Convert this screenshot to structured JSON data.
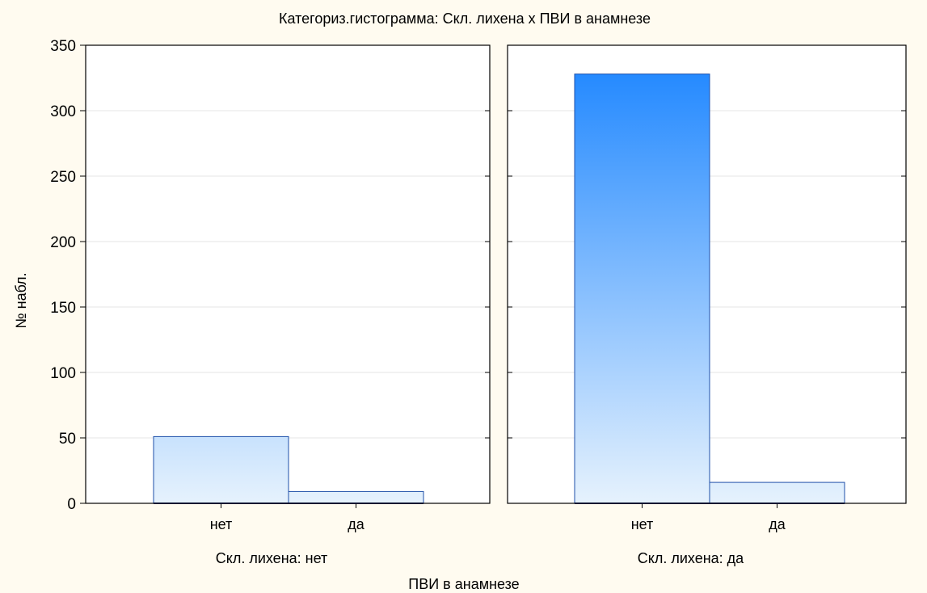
{
  "chart_data": {
    "type": "bar",
    "title": "Категориз.гистограмма: Скл. лихена x ПВИ в анамнезе",
    "xlabel": "ПВИ в анамнезе",
    "ylabel": "№ набл.",
    "ylim": [
      0,
      350
    ],
    "yticks": [
      0,
      50,
      100,
      150,
      200,
      250,
      300,
      350
    ],
    "grid": true,
    "panels": [
      {
        "label": "Скл. лихена: нет",
        "categories": [
          "нет",
          "да"
        ],
        "values": [
          51,
          9
        ]
      },
      {
        "label": "Скл. лихена: да",
        "categories": [
          "нет",
          "да"
        ],
        "values": [
          328,
          16
        ]
      }
    ]
  },
  "colors": {
    "bar_top": "#1a84ff",
    "bar_bottom": "#e6f2fd",
    "bar_stroke": "#1e4fa8",
    "gridline": "#e4e4e4",
    "background": "#fffbf0"
  }
}
